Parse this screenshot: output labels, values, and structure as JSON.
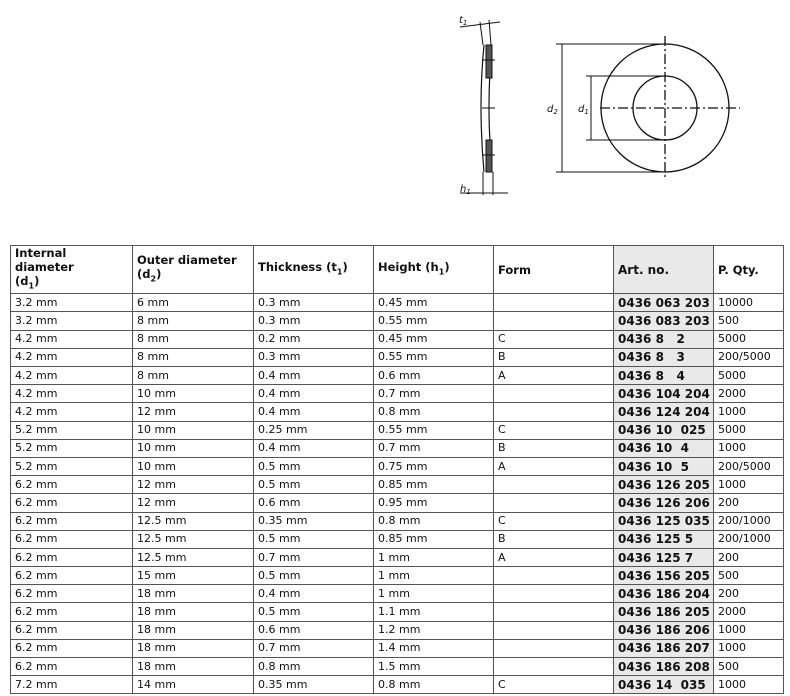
{
  "drawing": {
    "labels": {
      "t1": "t",
      "h1": "h",
      "d1": "d",
      "d2": "d",
      "t1_sub": "1",
      "h1_sub": "1",
      "d1_sub": "1",
      "d2_sub": "2"
    }
  },
  "table": {
    "headers": [
      {
        "text": "Internal diameter",
        "line2": "(d",
        "sub": "1",
        "end": ")"
      },
      {
        "text": "Outer diameter",
        "line2": "(d",
        "sub": "2",
        "end": ")"
      },
      {
        "text": "Thickness (t",
        "sub": "1",
        "end": ")"
      },
      {
        "text": "Height (h",
        "sub": "1",
        "end": ")"
      },
      {
        "text": "Form"
      },
      {
        "text": "Art. no."
      },
      {
        "text": "P. Qty."
      }
    ],
    "rows": [
      [
        "3.2 mm",
        "6 mm",
        "0.3 mm",
        "0.45 mm",
        "",
        "0436 063 203",
        "10000"
      ],
      [
        "3.2 mm",
        "8 mm",
        "0.3 mm",
        "0.55 mm",
        "",
        "0436 083 203",
        "500"
      ],
      [
        "4.2 mm",
        "8 mm",
        "0.2 mm",
        "0.45 mm",
        "C",
        "0436 8   2",
        "5000"
      ],
      [
        "4.2 mm",
        "8 mm",
        "0.3 mm",
        "0.55 mm",
        "B",
        "0436 8   3",
        "200/5000"
      ],
      [
        "4.2 mm",
        "8 mm",
        "0.4 mm",
        "0.6 mm",
        "A",
        "0436 8   4",
        "5000"
      ],
      [
        "4.2 mm",
        "10 mm",
        "0.4 mm",
        "0.7 mm",
        "",
        "0436 104 204",
        "2000"
      ],
      [
        "4.2 mm",
        "12 mm",
        "0.4 mm",
        "0.8 mm",
        "",
        "0436 124 204",
        "1000"
      ],
      [
        "5.2 mm",
        "10 mm",
        "0.25 mm",
        "0.55 mm",
        "C",
        "0436 10  025",
        "5000"
      ],
      [
        "5.2 mm",
        "10 mm",
        "0.4 mm",
        "0.7 mm",
        "B",
        "0436 10  4",
        "1000"
      ],
      [
        "5.2 mm",
        "10 mm",
        "0.5 mm",
        "0.75 mm",
        "A",
        "0436 10  5",
        "200/5000"
      ],
      [
        "6.2 mm",
        "12 mm",
        "0.5 mm",
        "0.85 mm",
        "",
        "0436 126 205",
        "1000"
      ],
      [
        "6.2 mm",
        "12 mm",
        "0.6 mm",
        "0.95 mm",
        "",
        "0436 126 206",
        "200"
      ],
      [
        "6.2 mm",
        "12.5 mm",
        "0.35 mm",
        "0.8 mm",
        "C",
        "0436 125 035",
        "200/1000"
      ],
      [
        "6.2 mm",
        "12.5 mm",
        "0.5 mm",
        "0.85 mm",
        "B",
        "0436 125 5",
        "200/1000"
      ],
      [
        "6.2 mm",
        "12.5 mm",
        "0.7 mm",
        "1 mm",
        "A",
        "0436 125 7",
        "200"
      ],
      [
        "6.2 mm",
        "15 mm",
        "0.5 mm",
        "1 mm",
        "",
        "0436 156 205",
        "500"
      ],
      [
        "6.2 mm",
        "18 mm",
        "0.4 mm",
        "1 mm",
        "",
        "0436 186 204",
        "200"
      ],
      [
        "6.2 mm",
        "18 mm",
        "0.5 mm",
        "1.1 mm",
        "",
        "0436 186 205",
        "2000"
      ],
      [
        "6.2 mm",
        "18 mm",
        "0.6 mm",
        "1.2 mm",
        "",
        "0436 186 206",
        "1000"
      ],
      [
        "6.2 mm",
        "18 mm",
        "0.7 mm",
        "1.4 mm",
        "",
        "0436 186 207",
        "1000"
      ],
      [
        "6.2 mm",
        "18 mm",
        "0.8 mm",
        "1.5 mm",
        "",
        "0436 186 208",
        "500"
      ],
      [
        "7.2 mm",
        "14 mm",
        "0.35 mm",
        "0.8 mm",
        "C",
        "0436 14  035",
        "1000"
      ]
    ]
  }
}
